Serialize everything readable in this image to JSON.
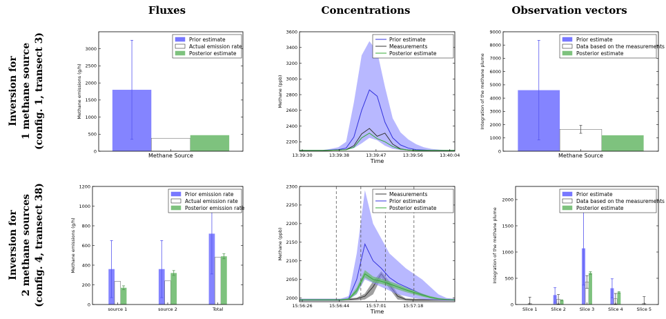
{
  "column_titles": [
    "Fluxes",
    "Concentrations",
    "Observation vectors"
  ],
  "row_titles": [
    [
      "Inversion for",
      "1 methane source",
      "(config. 1, transect 3)"
    ],
    [
      "Inversion for",
      "2 methane sources",
      "(config. 4, transect 38)"
    ]
  ],
  "colors": {
    "prior": "#7777ff",
    "posterior": "#7ec27e",
    "measure_fill": "#ffffff",
    "dark": "#333333",
    "dashed": "#555555"
  },
  "chart_data": [
    {
      "id": "flux1",
      "type": "bar",
      "ylabel": "Methane emissions (g/h)",
      "xlabel": "",
      "ylim": [
        0,
        3500
      ],
      "yticks": [
        0,
        500,
        1000,
        1500,
        2000,
        2500,
        3000
      ],
      "categories": [
        "Methane Source"
      ],
      "series": [
        {
          "name": "Prior estimate",
          "values": [
            1800
          ],
          "err": [
            1450
          ]
        },
        {
          "name": "Actual emission rate",
          "values": [
            380
          ]
        },
        {
          "name": "Posterior estimate",
          "values": [
            470
          ]
        }
      ]
    },
    {
      "id": "conc1",
      "type": "line",
      "ylabel": "Methane (ppb)",
      "xlabel": "Time",
      "ylim": [
        2080,
        3600
      ],
      "yticks": [
        2200,
        2400,
        2600,
        2800,
        3000,
        3200,
        3400,
        3600
      ],
      "xticks": [
        "13:39:30",
        "13:39:38",
        "13:39:47",
        "13:39:56",
        "13:40:04"
      ],
      "x": [
        0,
        1,
        2,
        3,
        4,
        5,
        6,
        7,
        8,
        9,
        10,
        11,
        12,
        13,
        14,
        15,
        16,
        17,
        18,
        19,
        20
      ],
      "series": [
        {
          "name": "Prior estimate",
          "values": [
            2090,
            2090,
            2090,
            2090,
            2095,
            2100,
            2120,
            2260,
            2600,
            2860,
            2780,
            2450,
            2250,
            2160,
            2120,
            2100,
            2095,
            2090,
            2090,
            2090,
            2090
          ],
          "band_upper": [
            2095,
            2095,
            2095,
            2095,
            2110,
            2130,
            2200,
            2700,
            3300,
            3480,
            3350,
            2900,
            2500,
            2320,
            2230,
            2170,
            2130,
            2110,
            2100,
            2095,
            2095
          ],
          "band_lower": [
            2088,
            2088,
            2088,
            2088,
            2090,
            2092,
            2095,
            2120,
            2180,
            2250,
            2220,
            2150,
            2110,
            2095,
            2090,
            2089,
            2088,
            2088,
            2088,
            2088,
            2088
          ]
        },
        {
          "name": "Measurements",
          "values": [
            2090,
            2090,
            2090,
            2090,
            2092,
            2095,
            2100,
            2150,
            2300,
            2370,
            2270,
            2310,
            2170,
            2110,
            2095,
            2090,
            2090,
            2090,
            2090,
            2090,
            2090
          ]
        },
        {
          "name": "Posterior estimate",
          "values": [
            2090,
            2090,
            2090,
            2090,
            2092,
            2095,
            2098,
            2130,
            2250,
            2310,
            2240,
            2200,
            2140,
            2105,
            2095,
            2090,
            2090,
            2090,
            2090,
            2090,
            2090
          ]
        }
      ]
    },
    {
      "id": "obs1",
      "type": "bar",
      "ylabel": "Integration of the methane plume",
      "xlabel": "",
      "ylim": [
        0,
        9000
      ],
      "yticks": [
        0,
        1000,
        2000,
        3000,
        4000,
        5000,
        6000,
        7000,
        8000,
        9000
      ],
      "categories": [
        "Methane Source"
      ],
      "series": [
        {
          "name": "Prior estimate",
          "values": [
            4600
          ],
          "err": [
            3750
          ]
        },
        {
          "name": "Data based on the measurements",
          "values": [
            1650
          ],
          "err": [
            300
          ]
        },
        {
          "name": "Posterior estimate",
          "values": [
            1200
          ]
        }
      ]
    },
    {
      "id": "flux2",
      "type": "bar",
      "ylabel": "Methane emissions (g/h)",
      "xlabel": "",
      "ylim": [
        0,
        1200
      ],
      "yticks": [
        0,
        200,
        400,
        600,
        800,
        1000,
        1200
      ],
      "categories": [
        "source 1",
        "source 2",
        "Total"
      ],
      "series": [
        {
          "name": "Prior emission rate",
          "values": [
            360,
            360,
            720
          ],
          "err": [
            290,
            290,
            410
          ]
        },
        {
          "name": "Actual emission rate",
          "values": [
            235,
            240,
            480
          ]
        },
        {
          "name": "Posterior emission rate",
          "values": [
            170,
            320,
            490
          ],
          "err": [
            20,
            25,
            25
          ]
        }
      ]
    },
    {
      "id": "conc2",
      "type": "line",
      "ylabel": "Methane (ppb)",
      "xlabel": "Time",
      "ylim": [
        1990,
        2300
      ],
      "yticks": [
        2000,
        2050,
        2100,
        2150,
        2200,
        2250,
        2300
      ],
      "xticks": [
        "15:56:26",
        "15:56:44",
        "15:57:01",
        "15:57:18"
      ],
      "vlines": [
        4.5,
        7.5,
        10.5,
        14.0
      ],
      "x": [
        0,
        1,
        2,
        3,
        4,
        5,
        6,
        7,
        8,
        9,
        10,
        11,
        12,
        13,
        14,
        15,
        16,
        17,
        18,
        19
      ],
      "series": [
        {
          "name": "Measurements",
          "values": [
            1995,
            1995,
            1995,
            1995,
            1995,
            1995,
            1996,
            1998,
            2005,
            2030,
            2065,
            2035,
            2005,
            1996,
            1995,
            1995,
            1995,
            1995,
            1995,
            1995
          ],
          "band_upper": [
            1998,
            1998,
            1998,
            1998,
            1998,
            1998,
            1999,
            2001,
            2012,
            2045,
            2072,
            2045,
            2012,
            1999,
            1998,
            1998,
            1998,
            1998,
            1998,
            1998
          ],
          "band_lower": [
            1992,
            1992,
            1992,
            1992,
            1992,
            1992,
            1993,
            1994,
            1996,
            2010,
            2055,
            2025,
            1996,
            1993,
            1992,
            1992,
            1992,
            1992,
            1992,
            1992
          ]
        },
        {
          "name": "Prior estimate",
          "values": [
            1995,
            1995,
            1995,
            1995,
            1995,
            1995,
            1998,
            2050,
            2145,
            2100,
            2080,
            2055,
            2040,
            2030,
            2020,
            2010,
            2002,
            1998,
            1996,
            1995
          ],
          "band_upper": [
            1998,
            1998,
            1998,
            1998,
            1998,
            1998,
            2005,
            2120,
            2290,
            2200,
            2160,
            2120,
            2100,
            2080,
            2065,
            2050,
            2030,
            2010,
            2000,
            1998
          ],
          "band_lower": [
            1993,
            1993,
            1993,
            1993,
            1993,
            1993,
            1995,
            2010,
            2050,
            2040,
            2030,
            2020,
            2010,
            2005,
            2000,
            1997,
            1995,
            1994,
            1993,
            1993
          ]
        },
        {
          "name": "Posterior estimate",
          "values": [
            1995,
            1995,
            1995,
            1995,
            1995,
            1995,
            1997,
            2020,
            2065,
            2050,
            2045,
            2038,
            2030,
            2022,
            2015,
            2008,
            2002,
            1998,
            1996,
            1995
          ],
          "band_upper": [
            1996,
            1996,
            1996,
            1996,
            1996,
            1996,
            1999,
            2028,
            2075,
            2058,
            2052,
            2045,
            2037,
            2028,
            2020,
            2012,
            2005,
            2000,
            1997,
            1996
          ],
          "band_lower": [
            1994,
            1994,
            1994,
            1994,
            1994,
            1994,
            1995,
            2012,
            2055,
            2042,
            2038,
            2031,
            2023,
            2016,
            2010,
            2004,
            1999,
            1996,
            1995,
            1994
          ]
        }
      ]
    },
    {
      "id": "obs2",
      "type": "bar",
      "ylabel": "Integration of the methane plume",
      "xlabel": "",
      "ylim": [
        0,
        2250
      ],
      "yticks": [
        0,
        500,
        1000,
        1500,
        2000
      ],
      "categories": [
        "Slice 1",
        "Slice 2",
        "Slice 3",
        "Slice 4",
        "Slice 5"
      ],
      "series": [
        {
          "name": "Prior estimate",
          "values": [
            0,
            180,
            1070,
            310,
            0
          ],
          "err": [
            0,
            140,
            700,
            180,
            0
          ]
        },
        {
          "name": "Data based on the measurements",
          "values": [
            20,
            100,
            430,
            110,
            20
          ],
          "err": [
            120,
            90,
            120,
            100,
            130
          ]
        },
        {
          "name": "Posterior estimate",
          "values": [
            0,
            80,
            600,
            230,
            0
          ],
          "err": [
            0,
            10,
            25,
            15,
            0
          ]
        }
      ]
    }
  ]
}
